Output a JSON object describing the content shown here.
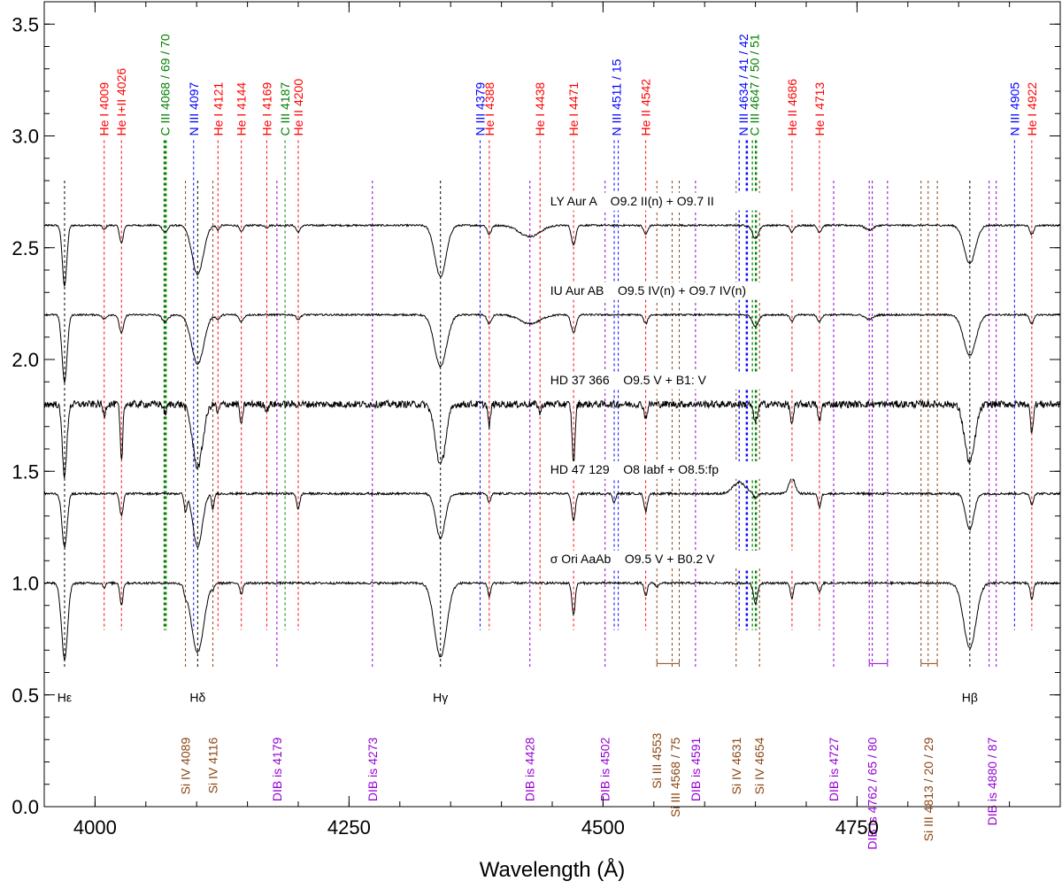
{
  "chart_data": {
    "type": "line",
    "title": "",
    "xlabel": "Wavelength (Å)",
    "ylabel": "",
    "xlim": [
      3950,
      4950
    ],
    "ylim": [
      0.0,
      3.6
    ],
    "xticks": [
      4000,
      4250,
      4500,
      4750
    ],
    "xtick_labels": [
      "4000",
      "4250",
      "4500",
      "4750"
    ],
    "yticks": [
      0.0,
      0.5,
      1.0,
      1.5,
      2.0,
      2.5,
      3.0,
      3.5
    ],
    "ytick_labels": [
      "0.0",
      "0.5",
      "1.0",
      "1.5",
      "2.0",
      "2.5",
      "3.0",
      "3.5"
    ],
    "grid": false,
    "colors": {
      "He": "#ff0000",
      "N": "#0000ff",
      "C": "#008000",
      "Si": "#8b4513",
      "DIB": "#9400d3",
      "H": "#000000",
      "spectrum": "#000000"
    },
    "series": [
      {
        "name": "LY Aur A    O9.2 II(n) + O9.7 II",
        "offset": 2.6,
        "noise": 0.004,
        "label_x": 4448,
        "lines": [
          {
            "x": 3970,
            "d": 0.27,
            "w": 2.2
          },
          {
            "x": 4009,
            "d": 0.02,
            "w": 1.5
          },
          {
            "x": 4026,
            "d": 0.08,
            "w": 1.8
          },
          {
            "x": 4069,
            "d": 0.03,
            "w": 2.5
          },
          {
            "x": 4101,
            "d": 0.22,
            "w": 5.5
          },
          {
            "x": 4121,
            "d": 0.02,
            "w": 1.5
          },
          {
            "x": 4144,
            "d": 0.03,
            "w": 1.8
          },
          {
            "x": 4169,
            "d": 0.01,
            "w": 1.5
          },
          {
            "x": 4200,
            "d": 0.03,
            "w": 2.0
          },
          {
            "x": 4340,
            "d": 0.23,
            "w": 5.5
          },
          {
            "x": 4388,
            "d": 0.04,
            "w": 2.0
          },
          {
            "x": 4428,
            "d": 0.05,
            "w": 10.0
          },
          {
            "x": 4471,
            "d": 0.09,
            "w": 2.0
          },
          {
            "x": 4542,
            "d": 0.04,
            "w": 2.0
          },
          {
            "x": 4650,
            "d": 0.06,
            "w": 3.0
          },
          {
            "x": 4686,
            "d": 0.03,
            "w": 2.0
          },
          {
            "x": 4713,
            "d": 0.03,
            "w": 2.0
          },
          {
            "x": 4762,
            "d": 0.02,
            "w": 4.0
          },
          {
            "x": 4861,
            "d": 0.17,
            "w": 5.5
          },
          {
            "x": 4922,
            "d": 0.04,
            "w": 2.0
          }
        ]
      },
      {
        "name": "IU Aur AB    O9.5 IV(n) + O9.7 IV(n)",
        "offset": 2.2,
        "noise": 0.004,
        "label_x": 4448,
        "lines": [
          {
            "x": 3970,
            "d": 0.3,
            "w": 2.5
          },
          {
            "x": 4009,
            "d": 0.02,
            "w": 2.0
          },
          {
            "x": 4026,
            "d": 0.08,
            "w": 2.2
          },
          {
            "x": 4069,
            "d": 0.03,
            "w": 3.0
          },
          {
            "x": 4101,
            "d": 0.22,
            "w": 6.0
          },
          {
            "x": 4121,
            "d": 0.02,
            "w": 2.0
          },
          {
            "x": 4144,
            "d": 0.03,
            "w": 2.2
          },
          {
            "x": 4200,
            "d": 0.02,
            "w": 2.0
          },
          {
            "x": 4340,
            "d": 0.23,
            "w": 6.0
          },
          {
            "x": 4388,
            "d": 0.04,
            "w": 2.2
          },
          {
            "x": 4428,
            "d": 0.04,
            "w": 10.0
          },
          {
            "x": 4471,
            "d": 0.08,
            "w": 2.4
          },
          {
            "x": 4542,
            "d": 0.04,
            "w": 2.0
          },
          {
            "x": 4650,
            "d": 0.05,
            "w": 3.0
          },
          {
            "x": 4686,
            "d": 0.03,
            "w": 2.0
          },
          {
            "x": 4713,
            "d": 0.03,
            "w": 2.0
          },
          {
            "x": 4762,
            "d": 0.02,
            "w": 4.0
          },
          {
            "x": 4861,
            "d": 0.18,
            "w": 6.0
          },
          {
            "x": 4922,
            "d": 0.04,
            "w": 2.0
          }
        ]
      },
      {
        "name": "HD 37 366    O9.5 V + B1: V",
        "offset": 1.8,
        "noise": 0.016,
        "label_x": 4448,
        "lines": [
          {
            "x": 3970,
            "d": 0.32,
            "w": 2.2
          },
          {
            "x": 4009,
            "d": 0.05,
            "w": 1.2
          },
          {
            "x": 4026,
            "d": 0.26,
            "w": 1.2
          },
          {
            "x": 4069,
            "d": 0.04,
            "w": 1.5
          },
          {
            "x": 4101,
            "d": 0.28,
            "w": 5.0
          },
          {
            "x": 4121,
            "d": 0.04,
            "w": 1.2
          },
          {
            "x": 4144,
            "d": 0.1,
            "w": 1.2
          },
          {
            "x": 4169,
            "d": 0.03,
            "w": 1.2
          },
          {
            "x": 4340,
            "d": 0.27,
            "w": 5.0
          },
          {
            "x": 4388,
            "d": 0.1,
            "w": 1.2
          },
          {
            "x": 4438,
            "d": 0.04,
            "w": 1.2
          },
          {
            "x": 4471,
            "d": 0.27,
            "w": 1.4
          },
          {
            "x": 4542,
            "d": 0.06,
            "w": 1.5
          },
          {
            "x": 4650,
            "d": 0.08,
            "w": 2.0
          },
          {
            "x": 4686,
            "d": 0.09,
            "w": 1.5
          },
          {
            "x": 4713,
            "d": 0.08,
            "w": 1.4
          },
          {
            "x": 4861,
            "d": 0.26,
            "w": 5.0
          },
          {
            "x": 4922,
            "d": 0.12,
            "w": 1.4
          }
        ]
      },
      {
        "name": "HD 47 129    O8 Iabf + O8.5:fp",
        "offset": 1.4,
        "noise": 0.005,
        "label_x": 4448,
        "lines": [
          {
            "x": 3970,
            "d": 0.24,
            "w": 2.5
          },
          {
            "x": 4026,
            "d": 0.1,
            "w": 1.6
          },
          {
            "x": 4089,
            "d": 0.08,
            "w": 1.2
          },
          {
            "x": 4101,
            "d": 0.24,
            "w": 4.5
          },
          {
            "x": 4116,
            "d": 0.07,
            "w": 1.2
          },
          {
            "x": 4200,
            "d": 0.07,
            "w": 1.5
          },
          {
            "x": 4340,
            "d": 0.2,
            "w": 4.5
          },
          {
            "x": 4388,
            "d": 0.04,
            "w": 1.5
          },
          {
            "x": 4471,
            "d": 0.12,
            "w": 1.8
          },
          {
            "x": 4511,
            "d": 0.04,
            "w": 1.4
          },
          {
            "x": 4542,
            "d": 0.08,
            "w": 1.6
          },
          {
            "x": 4650,
            "d": 0.02,
            "w": 2.0
          },
          {
            "x": 4713,
            "d": 0.06,
            "w": 1.5
          },
          {
            "x": 4861,
            "d": 0.16,
            "w": 4.0
          },
          {
            "x": 4922,
            "d": 0.05,
            "w": 1.5
          }
        ],
        "emissions": [
          {
            "x": 4634,
            "h": 0.05,
            "w": 6
          },
          {
            "x": 4686,
            "h": 0.07,
            "w": 3
          }
        ]
      },
      {
        "name": "σ Ori AaAb    O9.5 V + B0.2 V",
        "offset": 1.0,
        "noise": 0.005,
        "label_x": 4448,
        "lines": [
          {
            "x": 3970,
            "d": 0.34,
            "w": 3.0
          },
          {
            "x": 4009,
            "d": 0.02,
            "w": 1.2
          },
          {
            "x": 4026,
            "d": 0.1,
            "w": 1.4
          },
          {
            "x": 4089,
            "d": 0.03,
            "w": 1.2
          },
          {
            "x": 4101,
            "d": 0.31,
            "w": 6.0
          },
          {
            "x": 4116,
            "d": 0.02,
            "w": 1.2
          },
          {
            "x": 4144,
            "d": 0.05,
            "w": 1.4
          },
          {
            "x": 4340,
            "d": 0.33,
            "w": 6.0
          },
          {
            "x": 4388,
            "d": 0.06,
            "w": 1.4
          },
          {
            "x": 4471,
            "d": 0.14,
            "w": 1.6
          },
          {
            "x": 4542,
            "d": 0.06,
            "w": 1.5
          },
          {
            "x": 4553,
            "d": 0.02,
            "w": 1.2
          },
          {
            "x": 4650,
            "d": 0.09,
            "w": 2.0
          },
          {
            "x": 4686,
            "d": 0.07,
            "w": 1.5
          },
          {
            "x": 4713,
            "d": 0.04,
            "w": 1.5
          },
          {
            "x": 4861,
            "d": 0.29,
            "w": 6.0
          },
          {
            "x": 4922,
            "d": 0.07,
            "w": 1.5
          }
        ]
      }
    ],
    "line_markers_top": [
      {
        "label": "He I 4009",
        "x": 4009,
        "color": "#ff0000",
        "marks": [
          4009
        ]
      },
      {
        "label": "He I+II 4026",
        "x": 4026,
        "color": "#ff0000",
        "marks": [
          4026
        ]
      },
      {
        "label": "C III 4068 / 69 / 70",
        "x": 4069,
        "color": "#008000",
        "marks": [
          4068,
          4069,
          4070
        ]
      },
      {
        "label": "N III 4097",
        "x": 4097,
        "color": "#0000ff",
        "marks": [
          4097
        ]
      },
      {
        "label": "He I 4121",
        "x": 4121,
        "color": "#ff0000",
        "marks": [
          4121
        ]
      },
      {
        "label": "He I 4144",
        "x": 4144,
        "color": "#ff0000",
        "marks": [
          4144
        ]
      },
      {
        "label": "He I 4169",
        "x": 4169,
        "color": "#ff0000",
        "marks": [
          4169
        ]
      },
      {
        "label": "C III 4187",
        "x": 4187,
        "color": "#008000",
        "marks": [
          4187
        ]
      },
      {
        "label": "He II 4200",
        "x": 4200,
        "color": "#ff0000",
        "marks": [
          4200
        ]
      },
      {
        "label": "N III 4379",
        "x": 4379,
        "color": "#0000ff",
        "marks": [
          4379
        ]
      },
      {
        "label": "He I 4388",
        "x": 4388,
        "color": "#ff0000",
        "marks": [
          4388
        ]
      },
      {
        "label": "He I 4438",
        "x": 4438,
        "color": "#ff0000",
        "marks": [
          4438
        ]
      },
      {
        "label": "He I 4471",
        "x": 4471,
        "color": "#ff0000",
        "marks": [
          4471
        ]
      },
      {
        "label": "N III 4511 / 15",
        "x": 4513,
        "color": "#0000ff",
        "marks": [
          4511,
          4515
        ]
      },
      {
        "label": "He II 4542",
        "x": 4542,
        "color": "#ff0000",
        "marks": [
          4542
        ]
      },
      {
        "label": "N III 4634 / 41 / 42",
        "x": 4638,
        "color": "#0000ff",
        "marks": [
          4634,
          4641,
          4642
        ]
      },
      {
        "label": "C III 4647 / 50 / 51",
        "x": 4649,
        "color": "#008000",
        "marks": [
          4647,
          4650,
          4651
        ]
      },
      {
        "label": "He II 4686",
        "x": 4686,
        "color": "#ff0000",
        "marks": [
          4686
        ]
      },
      {
        "label": "He I 4713",
        "x": 4713,
        "color": "#ff0000",
        "marks": [
          4713
        ]
      },
      {
        "label": "N III 4905",
        "x": 4905,
        "color": "#0000ff",
        "marks": [
          4905
        ]
      },
      {
        "label": "He I 4922",
        "x": 4922,
        "color": "#ff0000",
        "marks": [
          4922
        ]
      }
    ],
    "line_markers_bottom": [
      {
        "label": "Si IV 4089",
        "x": 4089,
        "color": "#8b4513",
        "marks": [
          4089
        ],
        "ends": [
          0.31,
          0.1
        ]
      },
      {
        "label": "Si IV 4116",
        "x": 4116,
        "color": "#8b4513",
        "marks": [
          4116
        ],
        "ends": [
          0.31,
          0.1
        ]
      },
      {
        "label": "DIB is 4179",
        "x": 4179,
        "color": "#9400d3",
        "marks": [
          4179
        ],
        "ends": [
          0.31,
          0.1
        ]
      },
      {
        "label": "DIB is 4273",
        "x": 4273,
        "color": "#9400d3",
        "marks": [
          4273
        ],
        "ends": [
          0.31,
          0.1
        ]
      },
      {
        "label": "DIB is 4428",
        "x": 4428,
        "color": "#9400d3",
        "marks": [
          4428
        ],
        "ends": [
          0.31,
          0.1
        ]
      },
      {
        "label": "DIB is 4502",
        "x": 4502,
        "color": "#9400d3",
        "marks": [
          4502
        ],
        "ends": [
          0.31,
          0.1
        ]
      },
      {
        "label": "Si III 4553",
        "x": 4553,
        "color": "#8b4513",
        "marks": [
          4553
        ],
        "ends": [
          0.33,
          0.11
        ],
        "bracket": [
          4553,
          4575
        ]
      },
      {
        "label": "Si III 4568 / 75",
        "x": 4571,
        "color": "#8b4513",
        "marks": [
          4568,
          4575
        ],
        "ends": [
          0.31,
          0.03
        ]
      },
      {
        "label": "DIB is 4591",
        "x": 4591,
        "color": "#9400d3",
        "marks": [
          4591
        ],
        "ends": [
          0.31,
          0.07
        ]
      },
      {
        "label": "Si IV 4631",
        "x": 4631,
        "color": "#8b4513",
        "marks": [
          4631
        ],
        "ends": [
          0.31,
          0.1
        ]
      },
      {
        "label": "Si IV 4654",
        "x": 4654,
        "color": "#8b4513",
        "marks": [
          4654
        ],
        "ends": [
          0.31,
          0.1
        ]
      },
      {
        "label": "DIB is 4727",
        "x": 4727,
        "color": "#9400d3",
        "marks": [
          4727
        ],
        "ends": [
          0.31,
          0.1
        ]
      },
      {
        "label": "DIB is 4762 / 65 / 80",
        "x": 4765,
        "color": "#9400d3",
        "marks": [
          4762,
          4765,
          4780
        ],
        "ends": [
          0.31,
          0.01
        ],
        "bracket": [
          4762,
          4780
        ]
      },
      {
        "label": "Si III 4813 / 20 / 29",
        "x": 4820,
        "color": "#8b4513",
        "marks": [
          4813,
          4820,
          4829
        ],
        "ends": [
          0.31,
          0.01
        ],
        "bracket": [
          4813,
          4829
        ]
      },
      {
        "label": "DIB is 4880 / 87",
        "x": 4883,
        "color": "#9400d3",
        "marks": [
          4880,
          4887
        ],
        "ends": [
          0.31,
          0.03
        ]
      }
    ],
    "hydrogen_lines": [
      {
        "label": "Hε",
        "x": 3970
      },
      {
        "label": "Hδ",
        "x": 4101
      },
      {
        "label": "Hγ",
        "x": 4340
      },
      {
        "label": "Hβ",
        "x": 4861
      }
    ]
  }
}
